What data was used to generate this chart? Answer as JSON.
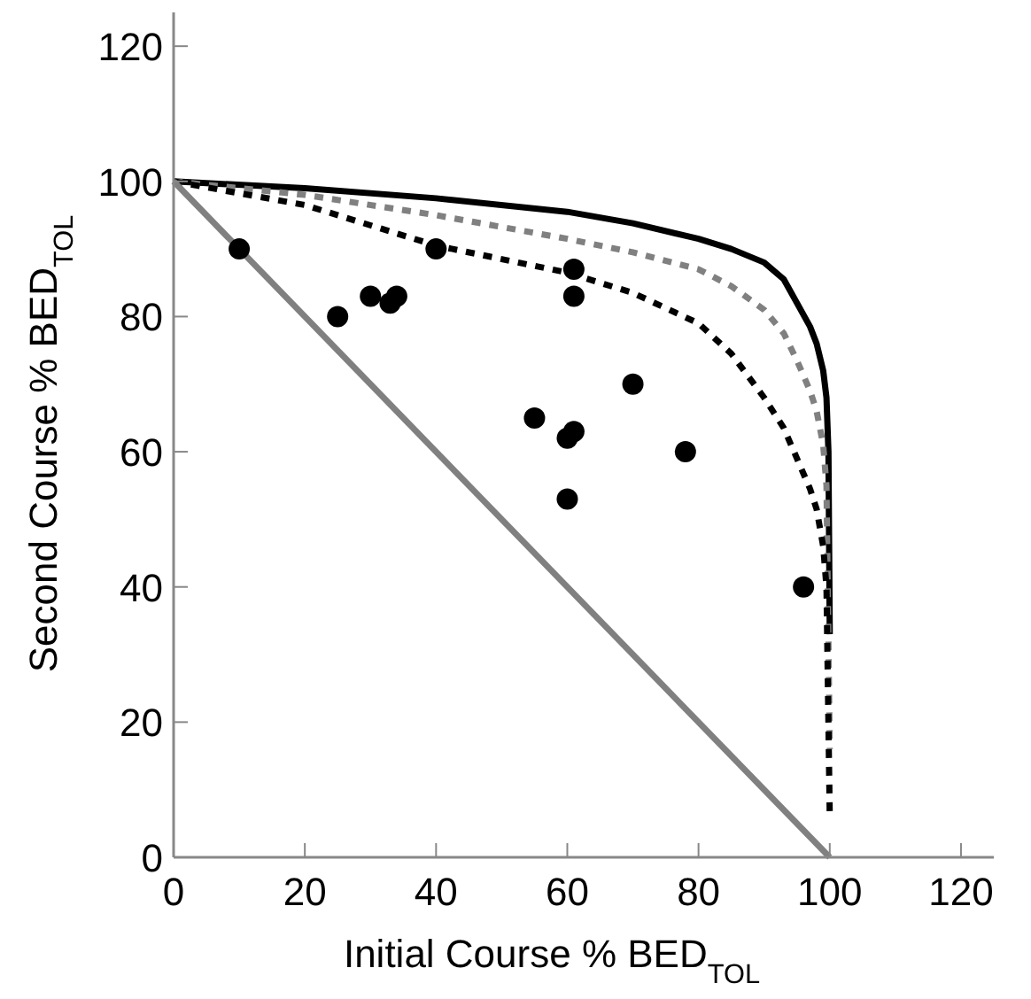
{
  "chart_data": {
    "type": "scatter",
    "xlabel": "Initial Course % BED$_{TOL}$",
    "ylabel": "Second Course % BED$_{TOL}$",
    "xlim": [
      0,
      125
    ],
    "ylim": [
      0,
      125
    ],
    "xticks": [
      0,
      20,
      40,
      60,
      80,
      100,
      120
    ],
    "yticks": [
      0,
      20,
      40,
      60,
      80,
      100,
      120
    ],
    "grid": false,
    "series": [
      {
        "type": "line",
        "color": "#000000",
        "line_style": "solid",
        "marker": "none",
        "x": [
          0,
          20,
          40,
          60,
          70,
          80,
          85,
          90,
          93,
          95,
          97,
          98,
          99,
          99.5,
          99.8,
          100
        ],
        "values": [
          100,
          99,
          97.5,
          95.5,
          93.8,
          91.5,
          90,
          88,
          85.5,
          82,
          78.5,
          76,
          72,
          68,
          60,
          33
        ]
      },
      {
        "type": "line",
        "color": "#808080",
        "line_style": "dotted",
        "marker": "none",
        "x": [
          0,
          20,
          40,
          60,
          70,
          80,
          85,
          90,
          93,
          95,
          97,
          98,
          99,
          99.5,
          100
        ],
        "values": [
          100,
          98,
          95,
          91.5,
          89.5,
          87,
          84.5,
          81,
          77.5,
          73.5,
          69,
          66,
          61,
          55,
          16
        ]
      },
      {
        "type": "line",
        "color": "#000000",
        "line_style": "dotted",
        "marker": "none",
        "x": [
          0,
          20,
          40,
          60,
          70,
          80,
          85,
          90,
          93,
          95,
          97,
          98,
          99,
          99.5,
          100
        ],
        "values": [
          100,
          96.5,
          90.5,
          86.5,
          83.5,
          79,
          74.5,
          68,
          63.5,
          59,
          54.5,
          51.5,
          46,
          40,
          6
        ]
      },
      {
        "type": "line",
        "color": "#808080",
        "line_style": "solid",
        "marker": "none",
        "x": [
          0,
          100
        ],
        "values": [
          100,
          0
        ]
      },
      {
        "color": "#000000",
        "marker": "circle",
        "x": [
          10,
          25,
          30,
          33,
          34,
          40,
          55,
          60,
          61,
          60,
          61,
          61,
          70,
          78,
          96
        ],
        "values": [
          90,
          80,
          83,
          82,
          83,
          90,
          65,
          62,
          63,
          53,
          87,
          83,
          70,
          60,
          40
        ]
      }
    ]
  }
}
